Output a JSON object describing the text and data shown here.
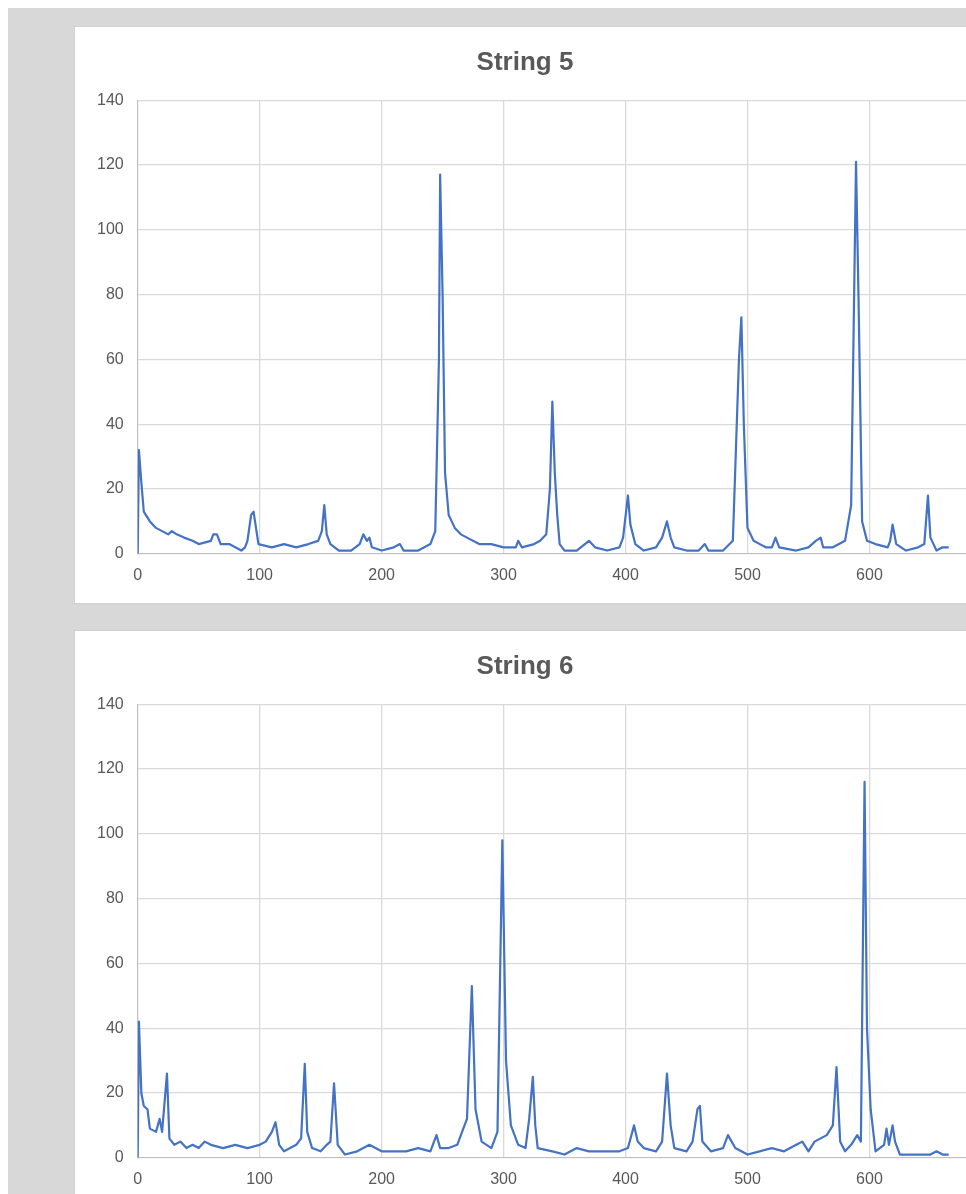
{
  "chart_data": [
    {
      "type": "line",
      "title": "String 5",
      "xlim": [
        0,
        680
      ],
      "xticks": [
        0,
        100,
        200,
        300,
        400,
        500,
        600
      ],
      "ylim": [
        0,
        140
      ],
      "yticks": [
        0,
        20,
        40,
        60,
        80,
        100,
        120,
        140
      ],
      "grid": true,
      "legend": false,
      "marker": "none",
      "series": [
        {
          "color": "#4472c4",
          "x": [
            0,
            1,
            3,
            5,
            10,
            15,
            20,
            25,
            28,
            32,
            38,
            45,
            50,
            60,
            62,
            65,
            68,
            75,
            80,
            85,
            88,
            90,
            93,
            95,
            97,
            99,
            110,
            120,
            130,
            140,
            148,
            151,
            153,
            155,
            158,
            165,
            175,
            182,
            185,
            188,
            190,
            192,
            200,
            210,
            215,
            218,
            230,
            240,
            244,
            247,
            248,
            250,
            252,
            255,
            260,
            265,
            270,
            280,
            290,
            300,
            310,
            312,
            315,
            325,
            330,
            335,
            338,
            340,
            342,
            344,
            346,
            350,
            360,
            370,
            375,
            385,
            395,
            398,
            402,
            404,
            408,
            415,
            425,
            430,
            434,
            437,
            440,
            450,
            460,
            465,
            468,
            480,
            488,
            493,
            495,
            497,
            500,
            505,
            515,
            520,
            523,
            526,
            540,
            550,
            556,
            560,
            562,
            570,
            580,
            585,
            589,
            591,
            594,
            598,
            605,
            615,
            617,
            619,
            622,
            630,
            640,
            645,
            648,
            650,
            655,
            660,
            665
          ],
          "values": [
            0,
            32,
            22,
            13,
            10,
            8,
            7,
            6,
            7,
            6,
            5,
            4,
            3,
            4,
            6,
            6,
            3,
            3,
            2,
            1,
            2,
            4,
            12,
            13,
            8,
            3,
            2,
            3,
            2,
            3,
            4,
            7,
            15,
            6,
            3,
            1,
            1,
            3,
            6,
            4,
            5,
            2,
            1,
            2,
            3,
            1,
            1,
            3,
            7,
            60,
            117,
            80,
            25,
            12,
            8,
            6,
            5,
            3,
            3,
            2,
            2,
            4,
            2,
            3,
            4,
            6,
            20,
            47,
            25,
            12,
            3,
            1,
            1,
            4,
            2,
            1,
            2,
            5,
            18,
            9,
            3,
            1,
            2,
            5,
            10,
            5,
            2,
            1,
            1,
            3,
            1,
            1,
            4,
            60,
            73,
            40,
            8,
            4,
            2,
            2,
            5,
            2,
            1,
            2,
            4,
            5,
            2,
            2,
            4,
            15,
            121,
            80,
            10,
            4,
            3,
            2,
            4,
            9,
            3,
            1,
            2,
            3,
            18,
            5,
            1,
            2,
            2
          ]
        }
      ]
    },
    {
      "type": "line",
      "title": "String 6",
      "xlim": [
        0,
        680
      ],
      "xticks": [
        0,
        100,
        200,
        300,
        400,
        500,
        600
      ],
      "ylim": [
        0,
        140
      ],
      "yticks": [
        0,
        20,
        40,
        60,
        80,
        100,
        120,
        140
      ],
      "grid": true,
      "legend": false,
      "marker": "none",
      "series": [
        {
          "color": "#4472c4",
          "x": [
            0,
            1,
            3,
            5,
            8,
            10,
            15,
            18,
            20,
            24,
            26,
            30,
            35,
            40,
            45,
            50,
            55,
            60,
            70,
            80,
            90,
            100,
            105,
            110,
            113,
            116,
            120,
            130,
            134,
            137,
            139,
            143,
            150,
            155,
            158,
            161,
            164,
            170,
            180,
            190,
            200,
            210,
            220,
            230,
            240,
            245,
            248,
            255,
            262,
            265,
            270,
            274,
            277,
            282,
            290,
            295,
            299,
            302,
            306,
            312,
            318,
            321,
            324,
            326,
            328,
            340,
            350,
            360,
            370,
            380,
            395,
            402,
            407,
            410,
            415,
            425,
            430,
            434,
            437,
            440,
            450,
            455,
            459,
            461,
            463,
            470,
            480,
            484,
            487,
            490,
            500,
            510,
            520,
            530,
            540,
            545,
            550,
            555,
            565,
            570,
            573,
            576,
            580,
            585,
            590,
            593,
            596,
            598,
            601,
            605,
            612,
            614,
            616,
            619,
            621,
            625,
            640,
            650,
            655,
            660,
            665
          ],
          "values": [
            0,
            42,
            20,
            16,
            15,
            9,
            8,
            12,
            8,
            26,
            6,
            4,
            5,
            3,
            4,
            3,
            5,
            4,
            3,
            4,
            3,
            4,
            5,
            8,
            11,
            4,
            2,
            4,
            6,
            29,
            8,
            3,
            2,
            4,
            5,
            23,
            4,
            1,
            2,
            4,
            2,
            2,
            2,
            3,
            2,
            7,
            3,
            3,
            4,
            7,
            12,
            53,
            15,
            5,
            3,
            8,
            98,
            30,
            10,
            4,
            3,
            12,
            25,
            10,
            3,
            2,
            1,
            3,
            2,
            2,
            2,
            3,
            10,
            5,
            3,
            2,
            5,
            26,
            10,
            3,
            2,
            5,
            15,
            16,
            5,
            2,
            3,
            7,
            5,
            3,
            1,
            2,
            3,
            2,
            4,
            5,
            2,
            5,
            7,
            10,
            28,
            5,
            2,
            4,
            7,
            5,
            116,
            40,
            15,
            2,
            4,
            9,
            4,
            10,
            5,
            1,
            1,
            1,
            2,
            1,
            1
          ]
        }
      ]
    }
  ]
}
